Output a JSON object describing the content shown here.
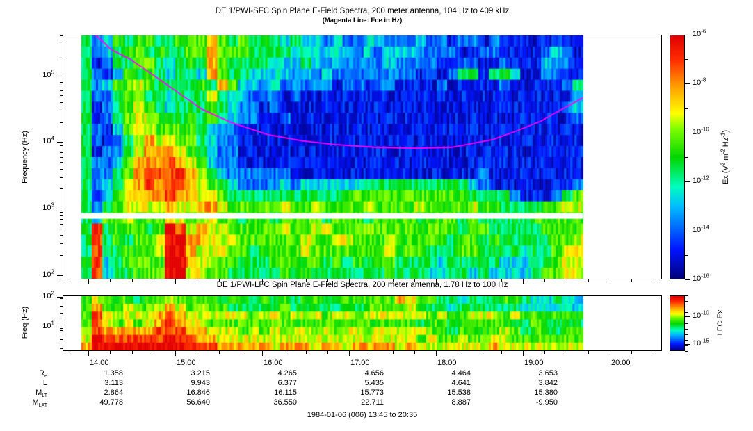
{
  "titles": {
    "sfc_title": "DE 1/PWI-SFC  Spin Plane E-Field Spectra, 200 meter antenna, 104 Hz to 409 kHz",
    "sfc_subtitle": "(Magenta Line: Fce in Hz)",
    "lfc_title": "DE 1/PWI-LFC  Spin Plane E-Field Spectra, 200 meter antenna, 1.78 Hz to 100 Hz"
  },
  "caption": "1984-01-06 (006) 13:45 to 20:35",
  "colors": {
    "fce_line": "#ff00ff",
    "frame": "#000000",
    "background": "#ffffff"
  },
  "sfc_axis": {
    "ylabel": "Frequency (Hz)",
    "ytick_exponents": [
      "5",
      "4",
      "3",
      "2"
    ]
  },
  "lfc_axis": {
    "ylabel": "Freq (Hz)",
    "ytick_exponents": [
      "2",
      "1"
    ]
  },
  "time_axis": {
    "tick_labels": [
      "14:00",
      "15:00",
      "16:00",
      "17:00",
      "18:00",
      "19:00",
      "20:00"
    ]
  },
  "sfc_colorbar": {
    "tick_exponents": [
      "-6",
      "-8",
      "-10",
      "-12",
      "-14",
      "-16"
    ],
    "label_segments": [
      {
        "t": "Ex (V"
      },
      {
        "sup": "2"
      },
      {
        "t": " m"
      },
      {
        "sup": "-2"
      },
      {
        "t": " Hz"
      },
      {
        "sup": "-1"
      },
      {
        "t": ")"
      }
    ]
  },
  "lfc_colorbar": {
    "ticks": [
      {
        "exp": "-10",
        "frac": 0.375
      },
      {
        "exp": "-15",
        "frac": 0.875
      }
    ],
    "label": "LFC Ex"
  },
  "ephemeris": {
    "row_labels": [
      {
        "main": "R",
        "sub": "e"
      },
      {
        "main": "L",
        "sub": ""
      },
      {
        "main": "M",
        "sub": "LT"
      },
      {
        "main": "M",
        "sub": "LAT"
      }
    ],
    "values": [
      [
        "1.358",
        "3.215",
        "4.265",
        "4.656",
        "4.464",
        "3.653",
        ""
      ],
      [
        "3.113",
        "9.943",
        "6.377",
        "5.435",
        "4.641",
        "3.842",
        ""
      ],
      [
        "2.864",
        "16.846",
        "16.115",
        "15.773",
        "15.538",
        "15.380",
        ""
      ],
      [
        "49.778",
        "56.640",
        "36.550",
        "22.711",
        "8.887",
        "-9.950",
        ""
      ]
    ]
  },
  "chart_data": [
    {
      "id": "sfc",
      "type": "heatmap",
      "subtype": "spectrogram",
      "title": "DE 1/PWI-SFC  Spin Plane E-Field Spectra, 200 meter antenna, 104 Hz to 409 kHz",
      "x": {
        "unit": "time",
        "plot_start": "13:42",
        "plot_end": "20:36",
        "data_start": "13:55",
        "data_end": "19:42"
      },
      "y": {
        "label": "Frequency (Hz)",
        "scale": "log",
        "min_hz": 104,
        "max_hz": 409000
      },
      "z": {
        "label": "Ex (V^2 m^-2 Hz^-1)",
        "scale": "log",
        "min": 1e-16,
        "max": 1e-06
      },
      "no_data_band_hz": [
        700,
        850
      ],
      "grid_encoding": "rows top-to-bottom 409kHz->100Hz; digit 0-9 maps log10(Ex) -16 -> -6",
      "grid": [
        "423545544555754544434332322332223221221211111211",
        "423455454455755544443433332323332222112211112321",
        "412445543454754444333432322223222211221121113221",
        "421354543443754433332323222222221212441443112211",
        "423556544445475332322222122122111121111121111124",
        "422455443444643322212111111111111111111111111113",
        "412456543444543221211111111111111111111111111123",
        "412456654454543221121111111111111111111111111112",
        "421356655554322111111111111111111111111111111111",
        "421246766554322111111111111111111111111111111111",
        "412246777654322111111111111111111111111111111111",
        "422357778765322111111111111111111111111111111111",
        "422457888876432222221111111111111111112111111111",
        "423467878876543222232333333444444444432111111112",
        "413567778776654444444444455555555555544442111245",
        "424566667667765555565565555655556555565544445566",
        "435565556656655455455554555455554555454444455555",
        "484555459867665555565566555655555555455444445555",
        "484545569977666555555655665556555554554544444556",
        "484455569976665545555655555556555444554444344566",
        "483455559976655444555554545455444434444433344566",
        "483445559966554444454544444445444334434333345566"
      ],
      "fce_line_hz": [
        [
          0.049,
          430000
        ],
        [
          0.056,
          400000
        ],
        [
          0.08,
          250000
        ],
        [
          0.11,
          182000
        ],
        [
          0.14,
          120000
        ],
        [
          0.172,
          75000
        ],
        [
          0.2,
          50000
        ],
        [
          0.233,
          31000
        ],
        [
          0.28,
          20000
        ],
        [
          0.342,
          13000
        ],
        [
          0.4,
          10500
        ],
        [
          0.452,
          9300
        ],
        [
          0.52,
          8400
        ],
        [
          0.59,
          8100
        ],
        [
          0.65,
          8400
        ],
        [
          0.719,
          11000
        ],
        [
          0.76,
          15000
        ],
        [
          0.8,
          21000
        ],
        [
          0.83,
          30000
        ],
        [
          0.862,
          43000
        ],
        [
          0.869,
          47000
        ]
      ]
    },
    {
      "id": "lfc",
      "type": "heatmap",
      "subtype": "spectrogram",
      "title": "DE 1/PWI-LFC  Spin Plane E-Field Spectra, 200 meter antenna, 1.78 Hz to 100 Hz",
      "x": {
        "unit": "time",
        "plot_start": "13:42",
        "plot_end": "20:36",
        "data_start": "13:55",
        "data_end": "19:42"
      },
      "y": {
        "label": "Freq (Hz)",
        "scale": "log",
        "min_hz": 1.78,
        "max_hz": 100
      },
      "z": {
        "label": "LFC Ex",
        "scale": "log"
      },
      "grid_encoding": "rows top-to-bottom 100Hz->2Hz; digit 0-9 low->high intensity",
      "grid": [
        "565554556555545545454554555555765544344455433433",
        "575565567656554444454444454555565443444444333333",
        "586666678766666656656665665666666565566656555555",
        "586565678766555555555555555555554554555554454444",
        "687777788877666565656656566566666554555565454455",
        "698888889887766666666666666666665655655665555555",
        "799999999988877777677767767777676666666766666666"
      ]
    }
  ]
}
